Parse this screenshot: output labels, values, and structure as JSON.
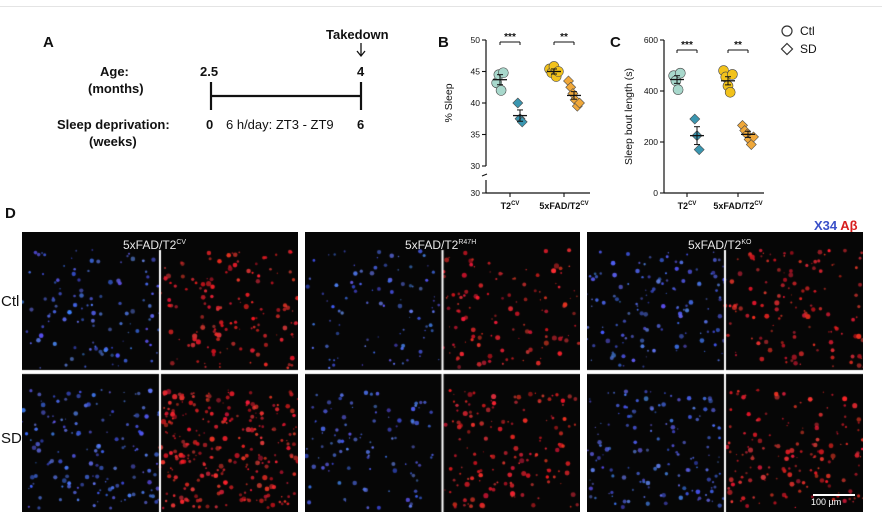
{
  "panel_a": {
    "letter": "A",
    "takedown_label": "Takedown",
    "age_label_1": "Age:",
    "age_label_2": "(months)",
    "age_start": "2.5",
    "age_end": "4",
    "sd_label_1": "Sleep deprivation:",
    "sd_label_2": "(weeks)",
    "sd_start": "0",
    "sd_protocol": "6 h/day: ZT3 - ZT9",
    "sd_end": "6"
  },
  "legend": {
    "ctl_label": "Ctl",
    "sd_label": "SD"
  },
  "panel_d": {
    "letter": "D",
    "stain_x34": "X34",
    "stain_abeta": "Aβ",
    "genotypes": [
      {
        "base": "5xFAD/T2",
        "sup": "CV"
      },
      {
        "base": "5xFAD/T2",
        "sup": "R47H"
      },
      {
        "base": "5xFAD/T2",
        "sup": "KO"
      }
    ],
    "rows": [
      "Ctl",
      "SD"
    ],
    "scale_bar": "100 µm"
  },
  "chart_data": [
    {
      "type": "scatter",
      "panel": "B",
      "ylabel": "% Sleep",
      "ylim": [
        30,
        50
      ],
      "y_axis_break": [
        30,
        34
      ],
      "yticks": [
        "30",
        "30",
        "35",
        "40",
        "45",
        "50"
      ],
      "categories": [
        {
          "base": "T2",
          "sup": "CV"
        },
        {
          "base": "5xFAD/T2",
          "sup": "CV"
        }
      ],
      "series": [
        {
          "name": "Ctl",
          "category": 0,
          "marker": "circle",
          "color": "#a8d8cc",
          "points": [
            43.2,
            44.5,
            42.0,
            44.8
          ],
          "mean": 43.7,
          "sem": 0.8
        },
        {
          "name": "SD",
          "category": 0,
          "marker": "diamond",
          "color": "#3a96b0",
          "points": [
            40.0,
            37.5,
            37.0
          ],
          "mean": 38.0,
          "sem": 0.9
        },
        {
          "name": "Ctl",
          "category": 1,
          "marker": "circle",
          "color": "#f2c21b",
          "points": [
            45.4,
            44.8,
            45.8,
            44.2,
            45.0
          ],
          "mean": 45.0,
          "sem": 0.4
        },
        {
          "name": "SD",
          "category": 1,
          "marker": "diamond",
          "color": "#f0a83a",
          "points": [
            43.5,
            42.5,
            41.5,
            40.5,
            39.5,
            40.0
          ],
          "mean": 41.2,
          "sem": 0.6
        }
      ],
      "significance": [
        "***",
        "**"
      ]
    },
    {
      "type": "scatter",
      "panel": "C",
      "ylabel": "Sleep bout length (s)",
      "ylim": [
        0,
        600
      ],
      "yticks": [
        "0",
        "200",
        "400",
        "600"
      ],
      "categories": [
        {
          "base": "T2",
          "sup": "CV"
        },
        {
          "base": "5xFAD/T2",
          "sup": "CV"
        }
      ],
      "series": [
        {
          "name": "Ctl",
          "category": 0,
          "marker": "circle",
          "color": "#a8d8cc",
          "points": [
            460,
            440,
            405,
            470
          ],
          "mean": 445,
          "sem": 15
        },
        {
          "name": "SD",
          "category": 0,
          "marker": "diamond",
          "color": "#3a96b0",
          "points": [
            290,
            225,
            170
          ],
          "mean": 225,
          "sem": 35
        },
        {
          "name": "Ctl",
          "category": 1,
          "marker": "circle",
          "color": "#f2c21b",
          "points": [
            480,
            455,
            420,
            395,
            465
          ],
          "mean": 440,
          "sem": 16
        },
        {
          "name": "SD",
          "category": 1,
          "marker": "diamond",
          "color": "#f0a83a",
          "points": [
            265,
            245,
            230,
            210,
            190,
            220
          ],
          "mean": 230,
          "sem": 12
        }
      ],
      "significance": [
        "***",
        "**"
      ]
    }
  ]
}
